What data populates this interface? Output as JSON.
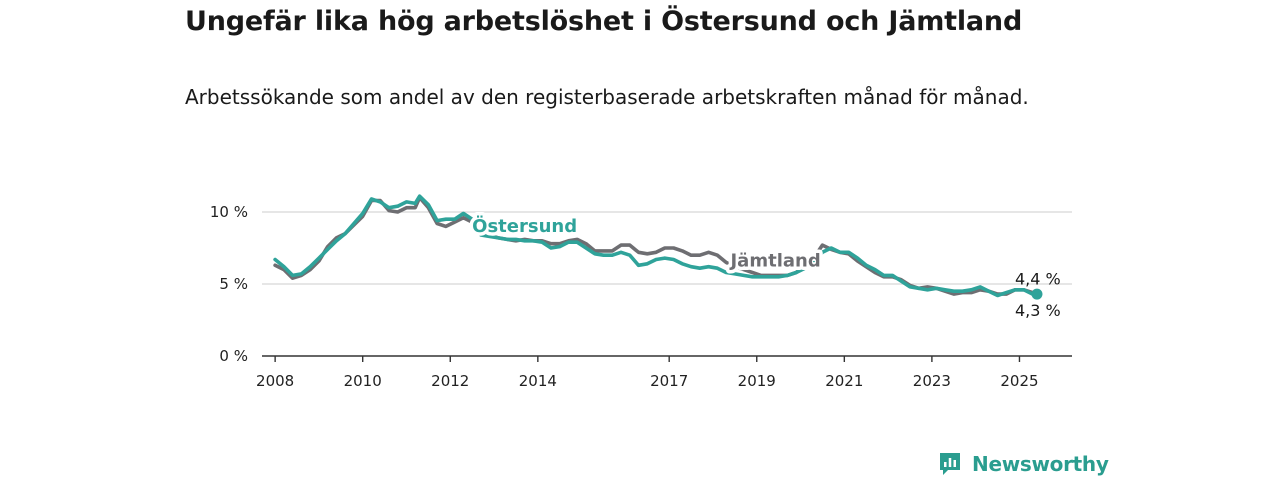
{
  "title": "Ungefär lika hög arbetslöshet i Östersund och Jämtland",
  "subtitle": "Arbetssökande som andel av den registerbaserade arbetskraften månad för månad.",
  "brand": {
    "name": "Newsworthy",
    "icon": "newsworthy-logo-icon"
  },
  "colors": {
    "ostersund": "#2fa39a",
    "jamtland": "#6e6e72",
    "axis": "#333333",
    "grid": "#d8d8d8"
  },
  "chart_data": {
    "type": "line",
    "title": "Ungefär lika hög arbetslöshet i Östersund och Jämtland",
    "subtitle": "Arbetssökande som andel av den registerbaserade arbetskraften månad för månad.",
    "xlabel": "",
    "ylabel": "",
    "xlim": [
      2007.7,
      2026.2
    ],
    "ylim": [
      0,
      10
    ],
    "x_ticks": [
      {
        "value": 2008,
        "label": "2008"
      },
      {
        "value": 2010,
        "label": "2010"
      },
      {
        "value": 2012,
        "label": "2012"
      },
      {
        "value": 2014,
        "label": "2014"
      },
      {
        "value": 2017,
        "label": "2017"
      },
      {
        "value": 2019,
        "label": "2019"
      },
      {
        "value": 2021,
        "label": "2021"
      },
      {
        "value": 2023,
        "label": "2023"
      },
      {
        "value": 2025,
        "label": "2025"
      }
    ],
    "y_ticks": [
      {
        "value": 0,
        "label": "0 %"
      },
      {
        "value": 5,
        "label": "5 %"
      },
      {
        "value": 10,
        "label": "10 %"
      }
    ],
    "grid": "horizontal",
    "series": [
      {
        "name": "Jämtland",
        "color": "#6e6e72",
        "end_label": "4,4 %",
        "points": [
          [
            2008.0,
            6.3
          ],
          [
            2008.2,
            6.0
          ],
          [
            2008.4,
            5.4
          ],
          [
            2008.6,
            5.6
          ],
          [
            2008.8,
            6.0
          ],
          [
            2009.0,
            6.6
          ],
          [
            2009.2,
            7.6
          ],
          [
            2009.4,
            8.2
          ],
          [
            2009.6,
            8.5
          ],
          [
            2009.8,
            9.1
          ],
          [
            2010.0,
            9.7
          ],
          [
            2010.2,
            10.8
          ],
          [
            2010.4,
            10.8
          ],
          [
            2010.6,
            10.1
          ],
          [
            2010.8,
            10.0
          ],
          [
            2011.0,
            10.3
          ],
          [
            2011.2,
            10.3
          ],
          [
            2011.3,
            11.0
          ],
          [
            2011.5,
            10.3
          ],
          [
            2011.7,
            9.2
          ],
          [
            2011.9,
            9.0
          ],
          [
            2012.1,
            9.3
          ],
          [
            2012.3,
            9.6
          ],
          [
            2012.5,
            9.3
          ],
          [
            2012.7,
            8.6
          ],
          [
            2012.9,
            8.4
          ],
          [
            2013.1,
            8.2
          ],
          [
            2013.3,
            8.1
          ],
          [
            2013.5,
            8.0
          ],
          [
            2013.7,
            8.1
          ],
          [
            2013.9,
            8.0
          ],
          [
            2014.1,
            8.0
          ],
          [
            2014.3,
            7.8
          ],
          [
            2014.5,
            7.8
          ],
          [
            2014.7,
            8.0
          ],
          [
            2014.9,
            8.1
          ],
          [
            2015.1,
            7.8
          ],
          [
            2015.3,
            7.3
          ],
          [
            2015.5,
            7.3
          ],
          [
            2015.7,
            7.3
          ],
          [
            2015.9,
            7.7
          ],
          [
            2016.1,
            7.7
          ],
          [
            2016.3,
            7.2
          ],
          [
            2016.5,
            7.1
          ],
          [
            2016.7,
            7.2
          ],
          [
            2016.9,
            7.5
          ],
          [
            2017.1,
            7.5
          ],
          [
            2017.3,
            7.3
          ],
          [
            2017.5,
            7.0
          ],
          [
            2017.7,
            7.0
          ],
          [
            2017.9,
            7.2
          ],
          [
            2018.1,
            7.0
          ],
          [
            2018.3,
            6.5
          ],
          [
            2018.5,
            6.2
          ],
          [
            2018.7,
            6.0
          ],
          [
            2018.9,
            5.8
          ],
          [
            2019.1,
            5.6
          ],
          [
            2019.3,
            5.6
          ],
          [
            2019.5,
            5.6
          ],
          [
            2019.7,
            5.6
          ],
          [
            2019.9,
            5.8
          ],
          [
            2020.1,
            6.3
          ],
          [
            2020.3,
            6.8
          ],
          [
            2020.5,
            7.7
          ],
          [
            2020.7,
            7.4
          ],
          [
            2020.9,
            7.2
          ],
          [
            2021.1,
            7.1
          ],
          [
            2021.3,
            6.6
          ],
          [
            2021.5,
            6.2
          ],
          [
            2021.7,
            5.8
          ],
          [
            2021.9,
            5.5
          ],
          [
            2022.1,
            5.5
          ],
          [
            2022.3,
            5.3
          ],
          [
            2022.5,
            4.9
          ],
          [
            2022.7,
            4.7
          ],
          [
            2022.9,
            4.8
          ],
          [
            2023.1,
            4.7
          ],
          [
            2023.3,
            4.5
          ],
          [
            2023.5,
            4.3
          ],
          [
            2023.7,
            4.4
          ],
          [
            2023.9,
            4.4
          ],
          [
            2024.1,
            4.6
          ],
          [
            2024.3,
            4.5
          ],
          [
            2024.5,
            4.3
          ],
          [
            2024.7,
            4.3
          ],
          [
            2024.9,
            4.6
          ],
          [
            2025.1,
            4.6
          ],
          [
            2025.3,
            4.4
          ],
          [
            2025.4,
            4.4
          ]
        ]
      },
      {
        "name": "Östersund",
        "color": "#2fa39a",
        "end_label": "4,3 %",
        "points": [
          [
            2008.0,
            6.7
          ],
          [
            2008.2,
            6.2
          ],
          [
            2008.4,
            5.6
          ],
          [
            2008.6,
            5.7
          ],
          [
            2008.8,
            6.2
          ],
          [
            2009.0,
            6.8
          ],
          [
            2009.2,
            7.4
          ],
          [
            2009.4,
            8.0
          ],
          [
            2009.6,
            8.5
          ],
          [
            2009.8,
            9.2
          ],
          [
            2010.0,
            9.9
          ],
          [
            2010.2,
            10.9
          ],
          [
            2010.4,
            10.7
          ],
          [
            2010.6,
            10.3
          ],
          [
            2010.8,
            10.4
          ],
          [
            2011.0,
            10.7
          ],
          [
            2011.2,
            10.6
          ],
          [
            2011.3,
            11.1
          ],
          [
            2011.5,
            10.5
          ],
          [
            2011.7,
            9.4
          ],
          [
            2011.9,
            9.5
          ],
          [
            2012.1,
            9.5
          ],
          [
            2012.3,
            9.9
          ],
          [
            2012.5,
            9.5
          ],
          [
            2012.7,
            8.4
          ],
          [
            2012.9,
            8.3
          ],
          [
            2013.1,
            8.2
          ],
          [
            2013.3,
            8.1
          ],
          [
            2013.5,
            8.1
          ],
          [
            2013.7,
            8.0
          ],
          [
            2013.9,
            8.0
          ],
          [
            2014.1,
            7.9
          ],
          [
            2014.3,
            7.5
          ],
          [
            2014.5,
            7.6
          ],
          [
            2014.7,
            7.9
          ],
          [
            2014.9,
            7.9
          ],
          [
            2015.1,
            7.5
          ],
          [
            2015.3,
            7.1
          ],
          [
            2015.5,
            7.0
          ],
          [
            2015.7,
            7.0
          ],
          [
            2015.9,
            7.2
          ],
          [
            2016.1,
            7.0
          ],
          [
            2016.3,
            6.3
          ],
          [
            2016.5,
            6.4
          ],
          [
            2016.7,
            6.7
          ],
          [
            2016.9,
            6.8
          ],
          [
            2017.1,
            6.7
          ],
          [
            2017.3,
            6.4
          ],
          [
            2017.5,
            6.2
          ],
          [
            2017.7,
            6.1
          ],
          [
            2017.9,
            6.2
          ],
          [
            2018.1,
            6.1
          ],
          [
            2018.3,
            5.8
          ],
          [
            2018.5,
            5.7
          ],
          [
            2018.7,
            5.6
          ],
          [
            2018.9,
            5.5
          ],
          [
            2019.1,
            5.5
          ],
          [
            2019.3,
            5.5
          ],
          [
            2019.5,
            5.5
          ],
          [
            2019.7,
            5.6
          ],
          [
            2019.9,
            5.8
          ],
          [
            2020.1,
            6.1
          ],
          [
            2020.3,
            6.6
          ],
          [
            2020.5,
            7.2
          ],
          [
            2020.7,
            7.5
          ],
          [
            2020.9,
            7.2
          ],
          [
            2021.1,
            7.2
          ],
          [
            2021.3,
            6.8
          ],
          [
            2021.5,
            6.3
          ],
          [
            2021.7,
            6.0
          ],
          [
            2021.9,
            5.6
          ],
          [
            2022.1,
            5.6
          ],
          [
            2022.3,
            5.2
          ],
          [
            2022.5,
            4.8
          ],
          [
            2022.7,
            4.7
          ],
          [
            2022.9,
            4.6
          ],
          [
            2023.1,
            4.7
          ],
          [
            2023.3,
            4.6
          ],
          [
            2023.5,
            4.5
          ],
          [
            2023.7,
            4.5
          ],
          [
            2023.9,
            4.6
          ],
          [
            2024.1,
            4.8
          ],
          [
            2024.3,
            4.5
          ],
          [
            2024.5,
            4.2
          ],
          [
            2024.7,
            4.4
          ],
          [
            2024.9,
            4.6
          ],
          [
            2025.1,
            4.6
          ],
          [
            2025.3,
            4.3
          ],
          [
            2025.4,
            4.3
          ]
        ]
      }
    ],
    "series_labels": [
      {
        "series": "Östersund",
        "text": "Östersund",
        "x": 2012.5,
        "y": 8.6
      },
      {
        "series": "Jämtland",
        "text": "Jämtland",
        "x": 2018.4,
        "y": 6.2
      }
    ]
  }
}
